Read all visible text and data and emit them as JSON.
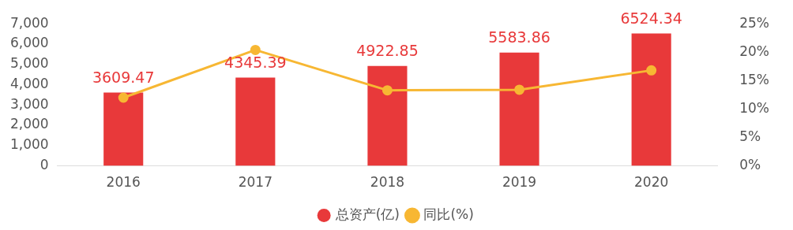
{
  "chart_data": {
    "type": "bar",
    "categories": [
      "2016",
      "2017",
      "2018",
      "2019",
      "2020"
    ],
    "series": [
      {
        "name": "总资产(亿)",
        "color": "#e8393a",
        "values": [
          3609.47,
          4345.39,
          4922.85,
          5583.86,
          6524.34
        ],
        "value_labels": [
          "3609.47",
          "4345.39",
          "4922.85",
          "5583.86",
          "6524.34"
        ]
      },
      {
        "name": "同比(%)",
        "type": "line",
        "axis": "y2",
        "color": "#f7b733",
        "values": [
          12,
          20.4,
          13.3,
          13.4,
          16.8
        ]
      }
    ],
    "ylim": [
      0,
      7000
    ],
    "yticks": [
      {
        "value": 0,
        "label": "0"
      },
      {
        "value": 1000,
        "label": "1,000"
      },
      {
        "value": 2000,
        "label": "2,000"
      },
      {
        "value": 3000,
        "label": "3,000"
      },
      {
        "value": 4000,
        "label": "4,000"
      },
      {
        "value": 5000,
        "label": "5,000"
      },
      {
        "value": 6000,
        "label": "6,000"
      },
      {
        "value": 7000,
        "label": "7,000"
      }
    ],
    "y2lim": [
      0,
      25
    ],
    "y2ticks": [
      {
        "value": 0,
        "label": "0%"
      },
      {
        "value": 5,
        "label": "5%"
      },
      {
        "value": 10,
        "label": "10%"
      },
      {
        "value": 15,
        "label": "15%"
      },
      {
        "value": 20,
        "label": "20%"
      },
      {
        "value": 25,
        "label": "25%"
      }
    ],
    "legend": "bottom",
    "grid": false,
    "marker": "circle",
    "line_style": "solid"
  }
}
